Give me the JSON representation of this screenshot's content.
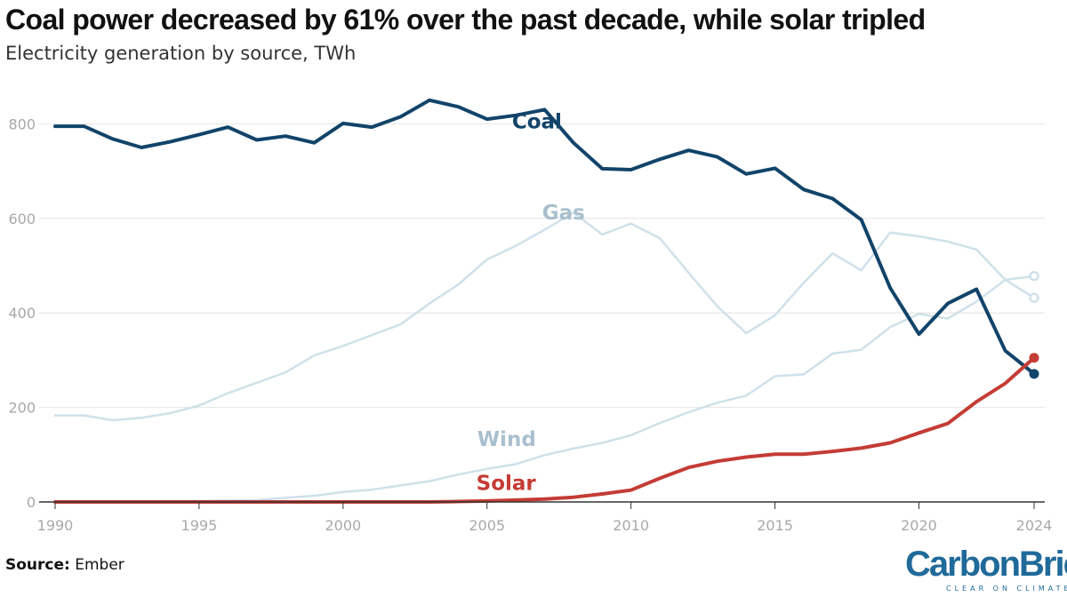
{
  "header": {
    "title": "Coal power decreased by 61% over the past decade, while solar tripled",
    "subtitle": "Electricity generation by source, TWh"
  },
  "footer": {
    "source_label": "Source:",
    "source_value": "Ember",
    "logo_text": "CarbonBrief",
    "logo_tagline": "CLEAR ON CLIMATE"
  },
  "colors": {
    "coal": "#12446a",
    "solar": "#c43c35",
    "faded_line": "#cfe1ea",
    "faded_label": "#a9bfcd",
    "grid": "#e4e4e4",
    "axis_text": "#a8a8a8",
    "axis_line": "#333333"
  },
  "chart_data": {
    "type": "line",
    "title": "Coal power decreased by 61% over the past decade, while solar tripled",
    "subtitle": "Electricity generation by source, TWh",
    "xlabel": "",
    "ylabel": "",
    "xlim": [
      1990,
      2024
    ],
    "ylim": [
      0,
      850
    ],
    "x_ticks": [
      "1990",
      "1995",
      "2000",
      "2005",
      "2010",
      "2015",
      "2020",
      "2024"
    ],
    "y_ticks": [
      "0",
      "200",
      "400",
      "600",
      "800"
    ],
    "grid": true,
    "legend": "direct labels on lines",
    "x": [
      1990,
      1991,
      1992,
      1993,
      1994,
      1995,
      1996,
      1997,
      1998,
      1999,
      2000,
      2001,
      2002,
      2003,
      2004,
      2005,
      2006,
      2007,
      2008,
      2009,
      2010,
      2011,
      2012,
      2013,
      2014,
      2015,
      2016,
      2017,
      2018,
      2019,
      2020,
      2021,
      2022,
      2023,
      2024
    ],
    "series": [
      {
        "name": "Coal",
        "highlight": true,
        "color": "#12446a",
        "end_marker": "filled",
        "values": [
          795,
          795,
          768,
          750,
          762,
          777,
          793,
          766,
          774,
          760,
          801,
          793,
          815,
          850,
          836,
          810,
          818,
          830,
          760,
          705,
          703,
          725,
          744,
          730,
          694,
          706,
          661,
          642,
          597,
          453,
          355,
          420,
          450,
          320,
          271
        ]
      },
      {
        "name": "Gas",
        "highlight": false,
        "color": "#cfe1ea",
        "end_marker": "hollow",
        "values": [
          183,
          183,
          173,
          178,
          188,
          204,
          230,
          252,
          274,
          310,
          330,
          353,
          376,
          420,
          460,
          513,
          542,
          576,
          612,
          566,
          589,
          558,
          485,
          414,
          357,
          395,
          464,
          526,
          490,
          570,
          562,
          551,
          534,
          470,
          432
        ]
      },
      {
        "name": "Wind",
        "highlight": false,
        "color": "#cfe1ea",
        "end_marker": "hollow",
        "values": [
          1,
          1,
          1,
          1,
          2,
          2,
          3,
          4,
          9,
          13,
          21,
          26,
          35,
          44,
          58,
          70,
          80,
          99,
          113,
          125,
          141,
          167,
          190,
          210,
          225,
          266,
          270,
          314,
          322,
          370,
          398,
          388,
          424,
          470,
          478
        ]
      },
      {
        "name": "Solar",
        "highlight": true,
        "color": "#c43c35",
        "end_marker": "filled",
        "values": [
          0,
          0,
          0,
          0,
          0,
          0,
          0,
          0,
          0,
          0,
          0,
          0,
          0,
          0,
          1,
          2,
          4,
          6,
          10,
          17,
          25,
          50,
          73,
          86,
          95,
          101,
          101,
          107,
          114,
          125,
          146,
          166,
          212,
          251,
          305
        ]
      }
    ]
  }
}
